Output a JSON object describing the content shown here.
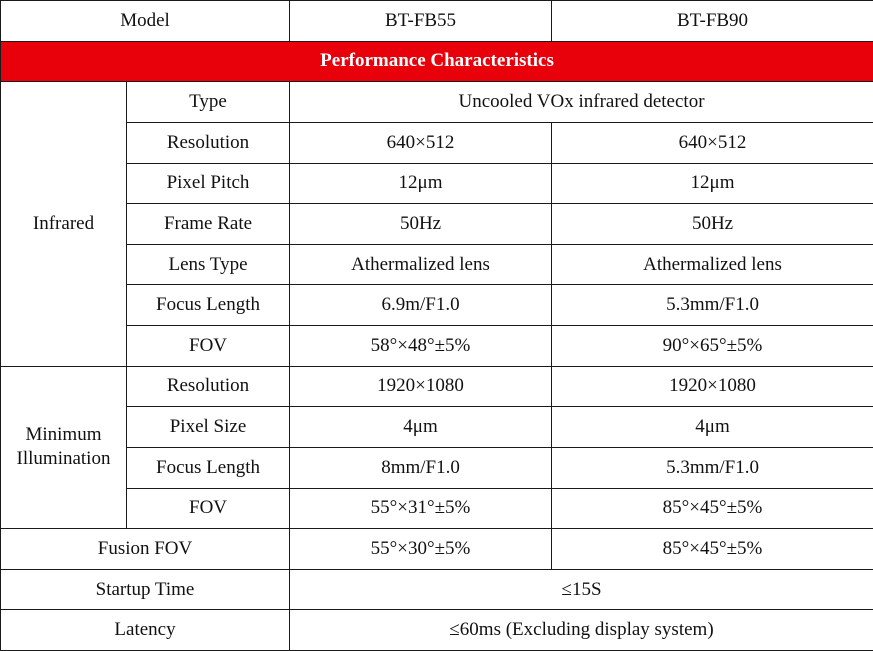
{
  "header": {
    "model_label": "Model",
    "model_a": "BT-FB55",
    "model_b": "BT-FB90"
  },
  "section_title": "Performance Characteristics",
  "infrared": {
    "group_label": "Infrared",
    "type": {
      "label": "Type",
      "value": "Uncooled VOx infrared detector"
    },
    "resolution": {
      "label": "Resolution",
      "a": "640×512",
      "b": "640×512"
    },
    "pixel_pitch": {
      "label": "Pixel Pitch",
      "a": "12μm",
      "b": "12μm"
    },
    "frame_rate": {
      "label": "Frame Rate",
      "a": "50Hz",
      "b": "50Hz"
    },
    "lens_type": {
      "label": "Lens Type",
      "a": "Athermalized lens",
      "b": "Athermalized lens"
    },
    "focus_length": {
      "label": "Focus Length",
      "a": "6.9m/F1.0",
      "b": "5.3mm/F1.0"
    },
    "fov": {
      "label": "FOV",
      "a": "58°×48°±5%",
      "b": "90°×65°±5%"
    }
  },
  "min_illumination": {
    "group_label": "Minimum Illumination",
    "resolution": {
      "label": "Resolution",
      "a": "1920×1080",
      "b": "1920×1080"
    },
    "pixel_size": {
      "label": "Pixel Size",
      "a": "4μm",
      "b": "4μm"
    },
    "focus_length": {
      "label": "Focus Length",
      "a": "8mm/F1.0",
      "b": "5.3mm/F1.0"
    },
    "fov": {
      "label": "FOV",
      "a": "55°×31°±5%",
      "b": "85°×45°±5%"
    }
  },
  "fusion_fov": {
    "label": "Fusion FOV",
    "a": "55°×30°±5%",
    "b": "85°×45°±5%"
  },
  "startup_time": {
    "label": "Startup Time",
    "value": "≤15S"
  },
  "latency": {
    "label": "Latency",
    "value": "≤60ms (Excluding display system)"
  }
}
